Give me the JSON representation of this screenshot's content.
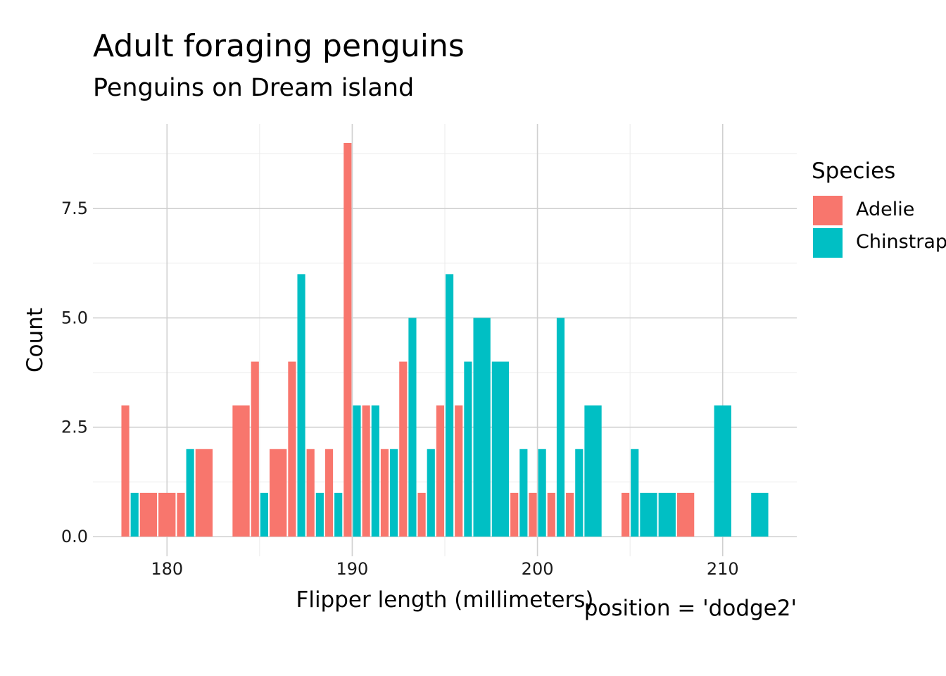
{
  "chart_data": {
    "type": "bar",
    "title": "Adult foraging penguins",
    "subtitle": "Penguins on Dream island",
    "xlabel": "Flipper length (millimeters)",
    "ylabel": "Count",
    "caption": "position = 'dodge2'",
    "xlim": [
      176,
      214
    ],
    "ylim": [
      0,
      9.4
    ],
    "x_ticks": [
      180,
      190,
      200,
      210
    ],
    "x_tick_labels": [
      "180",
      "190",
      "200",
      "210"
    ],
    "y_ticks": [
      0,
      2.5,
      5,
      7.5
    ],
    "y_tick_labels": [
      "0.0",
      "2.5",
      "5.0",
      "7.5"
    ],
    "grid": true,
    "legend": {
      "title": "Species",
      "position": "right"
    },
    "series": [
      {
        "name": "Adelie",
        "color": "#F8766D",
        "x": [
          178,
          179,
          180,
          181,
          182,
          184,
          185,
          186,
          187,
          188,
          189,
          190,
          191,
          192,
          193,
          194,
          195,
          196,
          199,
          200,
          201,
          202,
          205,
          208
        ],
        "values": [
          3,
          1,
          1,
          1,
          2,
          3,
          4,
          2,
          4,
          2,
          2,
          9,
          3,
          2,
          4,
          1,
          3,
          3,
          1,
          1,
          1,
          1,
          1,
          1
        ]
      },
      {
        "name": "Chinstrap",
        "color": "#00BFC4",
        "x": [
          178,
          181,
          185,
          187,
          188,
          189,
          190,
          191,
          192,
          193,
          194,
          195,
          196,
          197,
          198,
          199,
          200,
          201,
          202,
          203,
          205,
          206,
          207,
          210,
          212
        ],
        "values": [
          1,
          2,
          1,
          6,
          1,
          1,
          3,
          3,
          2,
          5,
          2,
          6,
          4,
          5,
          4,
          2,
          2,
          5,
          2,
          3,
          2,
          1,
          1,
          3,
          1
        ]
      }
    ]
  }
}
